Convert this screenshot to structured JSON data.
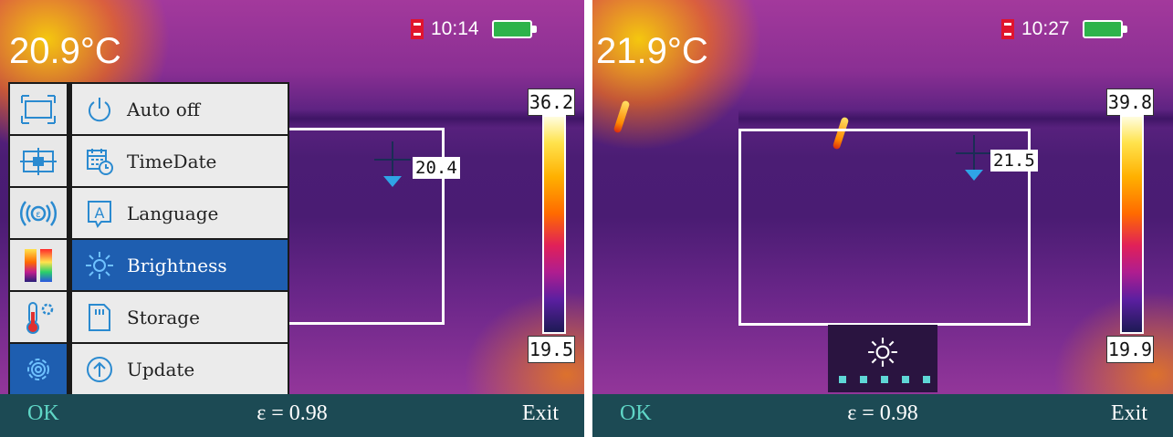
{
  "screens": [
    {
      "main_temp": "20.9°C",
      "time": "10:14",
      "spot_temp": "20.4",
      "scale_max": "36.2",
      "scale_min": "19.5",
      "menu": {
        "tabs": [
          {
            "icon": "measure-area-icon",
            "active": false
          },
          {
            "icon": "center-point-icon",
            "active": false
          },
          {
            "icon": "emissivity-icon",
            "active": false
          },
          {
            "icon": "palette-icon",
            "active": false
          },
          {
            "icon": "thermometer-settings-icon",
            "active": false
          },
          {
            "icon": "gear-icon",
            "active": true
          }
        ],
        "items": [
          {
            "label": "Auto off",
            "icon": "power-icon"
          },
          {
            "label": "TimeDate",
            "icon": "calendar-clock-icon"
          },
          {
            "label": "Language",
            "icon": "language-icon"
          },
          {
            "label": "Brightness",
            "icon": "sun-icon",
            "selected": true
          },
          {
            "label": "Storage",
            "icon": "sd-card-icon"
          },
          {
            "label": "Update",
            "icon": "update-arrow-icon"
          }
        ]
      },
      "bottom": {
        "ok": "OK",
        "emissivity": "ε = 0.98",
        "exit": "Exit"
      }
    },
    {
      "main_temp": "21.9°C",
      "time": "10:27",
      "spot_temp": "21.5",
      "scale_max": "39.8",
      "scale_min": "19.9",
      "brightness_popup": {
        "icon": "sun-icon",
        "level": 5,
        "max_level": 5
      },
      "bottom": {
        "ok": "OK",
        "emissivity": "ε = 0.98",
        "exit": "Exit"
      }
    }
  ],
  "colors": {
    "accent_blue": "#1e5eb0",
    "bottom_bar": "#1c4a54",
    "ok_text": "#5fd6c6",
    "battery_green": "#2db34a",
    "sd_red": "#e0142d"
  }
}
